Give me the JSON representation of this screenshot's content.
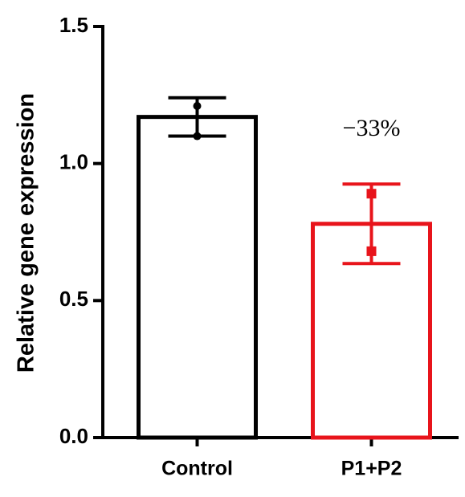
{
  "chart_data": {
    "type": "bar",
    "y_label": "Relative gene expression",
    "categories": [
      "Control",
      "P1+P2"
    ],
    "values": [
      1.17,
      0.78
    ],
    "errors": [
      0.07,
      0.145
    ],
    "points": [
      [
        1.21,
        1.1
      ],
      [
        0.89,
        0.68
      ]
    ],
    "colors": [
      "#000000",
      "#e8141b"
    ],
    "markers": [
      "circle",
      "square"
    ],
    "annotation": {
      "text": "−33%",
      "category": 1
    },
    "ylim": [
      0,
      1.5
    ],
    "yticks": [
      {
        "value": 0,
        "label": "0.0"
      },
      {
        "value": 0.5,
        "label": "0.5"
      },
      {
        "value": 1,
        "label": "1.0"
      },
      {
        "value": 1.5,
        "label": "1.5"
      }
    ]
  }
}
